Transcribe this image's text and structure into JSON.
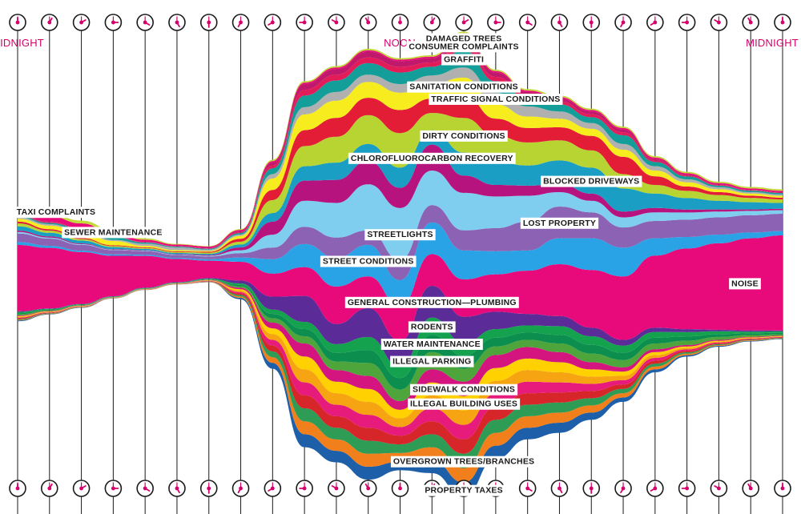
{
  "chart_data": {
    "type": "streamgraph",
    "x_labels": {
      "start": "MIDNIGHT",
      "middle": "NOON",
      "end": "MIDNIGHT"
    },
    "hours": [
      0,
      1,
      2,
      3,
      4,
      5,
      6,
      7,
      8,
      9,
      10,
      11,
      12,
      13,
      14,
      15,
      16,
      17,
      18,
      19,
      20,
      21,
      22,
      23,
      24
    ],
    "clock_rows": [
      "top",
      "bottom"
    ],
    "accent_color": "#d6006c",
    "series": [
      {
        "name": "PROPERTY TAXES",
        "color": "#1d5fa8",
        "values": [
          0.5,
          0.3,
          0.2,
          0.1,
          0.1,
          0.1,
          0.2,
          1,
          4,
          9,
          8,
          9,
          6,
          9,
          10,
          9,
          8,
          7,
          5,
          3,
          2,
          1,
          0.6,
          0.4,
          0.3
        ]
      },
      {
        "name": "",
        "color": "#f07f1c",
        "values": [
          0.5,
          0.3,
          0.2,
          0.1,
          0.1,
          0.1,
          0.2,
          1,
          4,
          9,
          8,
          9,
          6,
          9,
          10,
          9,
          8,
          7,
          5,
          3,
          2,
          1,
          0.6,
          0.4,
          0.3
        ]
      },
      {
        "name": "OVERGROWN TREES/BRANCHES",
        "color": "#2e9c55",
        "values": [
          0.5,
          0.3,
          0.2,
          0.1,
          0.1,
          0.1,
          0.2,
          1,
          4,
          9,
          8,
          9,
          6,
          9,
          10,
          9,
          8,
          7,
          5,
          3,
          2,
          1,
          0.6,
          0.4,
          0.3
        ]
      },
      {
        "name": "",
        "color": "#d7262a",
        "values": [
          0.5,
          0.3,
          0.2,
          0.1,
          0.1,
          0.1,
          0.2,
          1,
          4,
          9,
          8,
          9,
          6,
          9,
          10,
          9,
          8,
          7,
          5,
          3,
          2,
          1,
          0.6,
          0.4,
          0.3
        ]
      },
      {
        "name": "",
        "color": "#e71b7b",
        "values": [
          0.5,
          0.3,
          0.2,
          0.1,
          0.1,
          0.1,
          0.2,
          1,
          4,
          9,
          8,
          9,
          6,
          9,
          10,
          9,
          8,
          7,
          5,
          3,
          2,
          1,
          0.6,
          0.4,
          0.3
        ]
      },
      {
        "name": "",
        "color": "#f6a412",
        "values": [
          0.5,
          0.3,
          0.2,
          0.1,
          0.1,
          0.1,
          0.2,
          1,
          4,
          9,
          8,
          9,
          6,
          9,
          10,
          9,
          8,
          7,
          5,
          3,
          2,
          1,
          0.6,
          0.4,
          0.3
        ]
      },
      {
        "name": "ILLEGAL BUILDING USES",
        "color": "#ffd100",
        "values": [
          0.5,
          0.3,
          0.2,
          0.1,
          0.1,
          0.1,
          0.2,
          1,
          4,
          9,
          8,
          9,
          6,
          9,
          10,
          9,
          8,
          7,
          5,
          3,
          2,
          1,
          0.6,
          0.4,
          0.3
        ]
      },
      {
        "name": "SIDEWALK CONDITIONS",
        "color": "#d4157f",
        "values": [
          0.5,
          0.3,
          0.2,
          0.1,
          0.1,
          0.1,
          0.2,
          1,
          4,
          9,
          8,
          9,
          6,
          9,
          10,
          9,
          8,
          7,
          5,
          3,
          2,
          1,
          0.6,
          0.4,
          0.3
        ]
      },
      {
        "name": "ILLEGAL PARKING",
        "color": "#4da53b",
        "values": [
          0.8,
          0.5,
          0.3,
          0.2,
          0.2,
          0.2,
          0.3,
          1,
          3,
          5,
          6,
          9,
          8,
          12,
          9,
          6,
          5,
          6,
          6,
          5,
          4,
          3,
          2,
          1.2,
          1
        ]
      },
      {
        "name": "WATER MAINTENANCE",
        "color": "#0c8f4e",
        "values": [
          0.8,
          0.5,
          0.3,
          0.2,
          0.2,
          0.2,
          0.3,
          1,
          3,
          5,
          6,
          9,
          8,
          12,
          9,
          6,
          5,
          6,
          6,
          5,
          4,
          3,
          2,
          1.2,
          1
        ]
      },
      {
        "name": "RODENTS",
        "color": "#15a24f",
        "values": [
          0.8,
          0.5,
          0.3,
          0.2,
          0.2,
          0.2,
          0.3,
          1,
          3,
          5,
          6,
          9,
          8,
          12,
          9,
          6,
          5,
          6,
          6,
          5,
          4,
          3,
          2,
          1.2,
          1
        ]
      },
      {
        "name": "GENERAL CONSTRUCTION — PLUMBING",
        "color": "#5b2b98",
        "values": [
          0.5,
          0.3,
          0.2,
          0.2,
          0.3,
          0.3,
          0.5,
          2,
          9,
          18,
          14,
          20,
          18,
          22,
          18,
          12,
          8,
          7,
          6,
          4,
          3,
          2,
          1,
          0.8,
          0.6
        ]
      },
      {
        "name": "NOISE",
        "color": "#e8097a",
        "values": [
          46,
          42,
          36,
          28,
          22,
          16,
          12,
          13,
          16,
          20,
          26,
          22,
          24,
          22,
          26,
          26,
          30,
          36,
          40,
          44,
          50,
          56,
          60,
          64,
          66
        ]
      },
      {
        "name": "STREET CONDITIONS",
        "color": "#29a3e6",
        "values": [
          2,
          1.5,
          1,
          1,
          0.8,
          0.8,
          1,
          3,
          10,
          16,
          20,
          22,
          18,
          22,
          20,
          16,
          14,
          18,
          22,
          20,
          12,
          8,
          6,
          4,
          3
        ]
      },
      {
        "name": "LOST PROPERTY",
        "color": "#8c63b4",
        "values": [
          6,
          5,
          4,
          3,
          2.5,
          2,
          2,
          3,
          8,
          12,
          14,
          10,
          14,
          12,
          14,
          16,
          20,
          22,
          18,
          14,
          12,
          12,
          12,
          12,
          12
        ]
      },
      {
        "name": "STREETLIGHTS",
        "color": "#7fcdef",
        "values": [
          1,
          0.7,
          0.5,
          0.3,
          0.3,
          0.3,
          0.5,
          2,
          9,
          18,
          24,
          32,
          36,
          24,
          26,
          22,
          18,
          10,
          8,
          7,
          6,
          5,
          4,
          3,
          2.5
        ]
      },
      {
        "name": "CHLOROFLUOROCARBON RECOVERY",
        "color": "#b7137f",
        "values": [
          1,
          0.8,
          0.5,
          0.3,
          0.3,
          0.3,
          0.5,
          2,
          9,
          14,
          16,
          16,
          14,
          18,
          12,
          8,
          7,
          6,
          5,
          4,
          3,
          2,
          1.5,
          1,
          1
        ]
      },
      {
        "name": "BLOCKED DRIVEWAYS",
        "color": "#1b9ec4",
        "values": [
          3,
          2.5,
          2,
          1.5,
          1,
          0.8,
          0.8,
          2,
          6,
          10,
          12,
          12,
          14,
          10,
          16,
          16,
          14,
          16,
          18,
          16,
          10,
          8,
          6,
          5,
          4
        ]
      },
      {
        "name": "DIRTY CONDITIONS",
        "color": "#b8d432",
        "values": [
          2,
          1.5,
          1,
          0.7,
          0.6,
          0.6,
          0.8,
          2,
          9,
          14,
          18,
          20,
          24,
          12,
          24,
          18,
          16,
          14,
          12,
          10,
          6,
          5,
          4,
          3,
          2.5
        ]
      },
      {
        "name": "",
        "color": "#e31d36",
        "values": [
          1.2,
          1,
          0.8,
          0.5,
          0.5,
          0.5,
          0.6,
          2,
          7,
          11,
          13,
          12,
          16,
          10,
          16,
          12,
          10,
          9,
          10,
          12,
          6,
          3,
          2,
          1.5,
          1.2
        ]
      },
      {
        "name": "SANITATION CONDITIONS",
        "color": "#f6ec1e",
        "values": [
          2,
          2.5,
          4,
          3,
          1,
          0.8,
          0.6,
          2,
          8,
          11,
          12,
          11,
          12,
          10,
          12,
          10,
          8,
          6,
          5,
          5,
          4,
          3,
          2,
          1.5,
          1.2
        ]
      },
      {
        "name": "TRAFFIC SIGNAL CONDITIONS",
        "color": "#b0b0b0",
        "values": [
          1,
          1,
          1,
          0.8,
          1.5,
          2,
          1,
          1,
          3,
          5,
          6,
          5,
          6,
          6,
          7,
          8,
          7,
          5,
          4,
          4,
          3,
          2,
          1.5,
          1,
          1
        ]
      },
      {
        "name": "GRAFFITI",
        "color": "#149e9a",
        "values": [
          1,
          0.8,
          1.5,
          2,
          0.8,
          0.5,
          0.5,
          1,
          4,
          8,
          8,
          8,
          8,
          6,
          12,
          8,
          6,
          5,
          4,
          6,
          3,
          2,
          1,
          1,
          1
        ]
      },
      {
        "name": "CONSUMER COMPLAINTS",
        "color": "#e21c59",
        "values": [
          0.5,
          0.4,
          0.3,
          0.2,
          0.2,
          0.2,
          0.3,
          0.6,
          2,
          4,
          4,
          4,
          4,
          3,
          6,
          3,
          2,
          2,
          2,
          2,
          1,
          0.6,
          0.4,
          0.3,
          0.3
        ]
      },
      {
        "name": "DAMAGED TREES",
        "color": "#c0196c",
        "values": [
          0.5,
          0.4,
          0.3,
          0.2,
          0.2,
          0.2,
          0.3,
          0.6,
          2,
          4,
          4,
          4,
          4,
          3,
          5,
          3,
          2,
          2,
          2,
          2,
          1,
          0.6,
          0.4,
          0.3,
          0.3
        ]
      },
      {
        "name": "TAXI COMPLAINTS",
        "color": "#e8097a",
        "values": [
          4,
          4,
          3,
          2,
          1.5,
          1,
          1,
          1,
          1,
          1,
          1,
          1,
          1,
          1,
          1,
          1,
          1,
          1,
          1,
          1,
          1,
          1,
          1,
          1,
          1
        ]
      },
      {
        "name": "SEWER MAINTENANCE",
        "color": "#c2d93a",
        "values": [
          1,
          1.5,
          2,
          2.5,
          1,
          0.5,
          0.3,
          0.5,
          1,
          1,
          1,
          1,
          1,
          1,
          1,
          1,
          1,
          1,
          1,
          1,
          1,
          1,
          1,
          1,
          1
        ]
      }
    ]
  },
  "labels": [
    {
      "series": "DAMAGED TREES",
      "text": "DAMAGED TREES"
    },
    {
      "series": "CONSUMER COMPLAINTS",
      "text": "CONSUMER COMPLAINTS"
    },
    {
      "series": "GRAFFITI",
      "text": "GRAFFITI"
    },
    {
      "series": "TRAFFIC SIGNAL CONDITIONS",
      "text": "TRAFFIC SIGNAL CONDITIONS"
    },
    {
      "series": "DIRTY CONDITIONS",
      "text": "DIRTY CONDITIONS"
    },
    {
      "series": "SEWER MAINTENANCE",
      "text": "SEWER MAINTENANCE"
    },
    {
      "series": "SANITATION CONDITIONS",
      "text": "SANITATION CONDITIONS"
    },
    {
      "series": "CHLOROFLUOROCARBON RECOVERY",
      "text": "CHLOROFLUOROCARBON RECOVERY"
    },
    {
      "series": "BLOCKED DRIVEWAYS",
      "text": "BLOCKED DRIVEWAYS"
    },
    {
      "series": "STREETLIGHTS",
      "text": "STREETLIGHTS"
    },
    {
      "series": "LOST PROPERTY",
      "text": "LOST PROPERTY"
    },
    {
      "series": "STREET CONDITIONS",
      "text": "STREET CONDITIONS"
    },
    {
      "series": "TAXI COMPLAINTS",
      "text": "TAXI COMPLAINTS"
    },
    {
      "series": "NOISE",
      "text": "NOISE"
    },
    {
      "series": "GENERAL CONSTRUCTION — PLUMBING",
      "text": "GENERAL CONSTRUCTION—PLUMBING"
    },
    {
      "series": "WATER MAINTENANCE",
      "text": "WATER MAINTENANCE"
    },
    {
      "series": "ILLEGAL PARKING",
      "text": "ILLEGAL PARKING"
    },
    {
      "series": "SIDEWALK CONDITIONS",
      "text": "SIDEWALK CONDITIONS"
    },
    {
      "series": "RODENTS",
      "text": "RODENTS"
    },
    {
      "series": "ILLEGAL BUILDING USES",
      "text": "ILLEGAL BUILDING USES"
    },
    {
      "series": "OVERGROWN TREES/BRANCHES",
      "text": "OVERGROWN TREES/BRANCHES"
    },
    {
      "series": "PROPERTY TAXES",
      "text": "PROPERTY TAXES"
    }
  ]
}
